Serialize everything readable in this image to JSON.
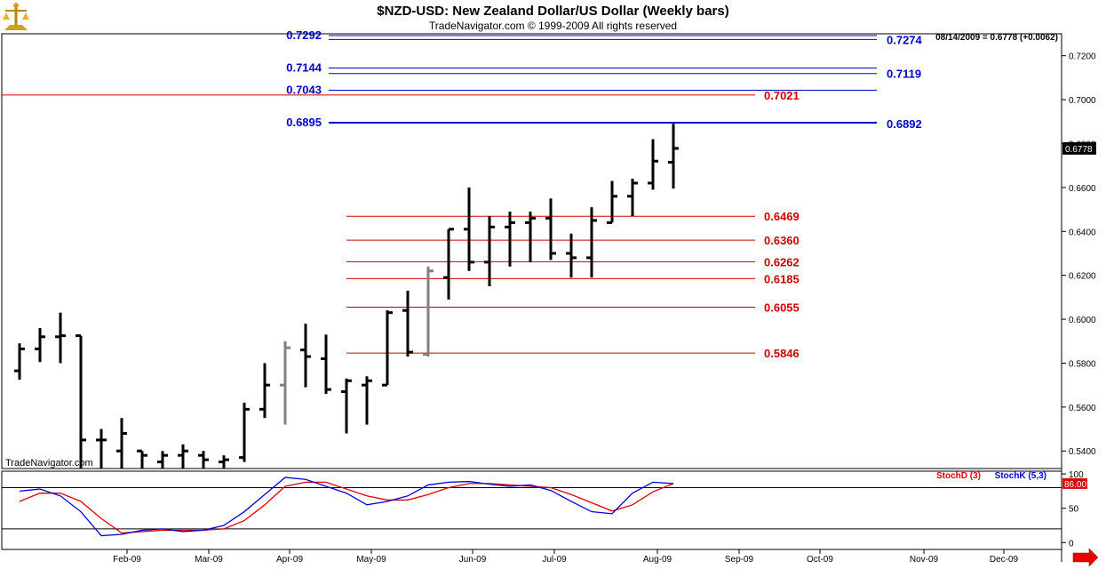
{
  "chart_data": {
    "type": "ohlc",
    "title": "$NZD-USD:  New Zealand Dollar/US Dollar  (Weekly bars)",
    "subtitle": "TradeNavigator.com © 1999-2009 All rights reserved",
    "last_bar_info": "08/14/2009 = 0.6778 (+0.0062)",
    "watermark": "TradeNavigator.com",
    "last_price_label": "0.6778",
    "price_axis": {
      "ylim": [
        0.532,
        0.73
      ],
      "ticks": [
        "0.5400",
        "0.5600",
        "0.5800",
        "0.6000",
        "0.6200",
        "0.6400",
        "0.6600",
        "0.6800",
        "0.7000",
        "0.7200"
      ]
    },
    "x_ticks": [
      "Feb-09",
      "Mar-09",
      "Apr-09",
      "May-09",
      "Jun-09",
      "Jul-09",
      "Aug-09",
      "Sep-09",
      "Oct-09",
      "Nov-09",
      "Dec-09"
    ],
    "bars": [
      {
        "o": 0.5765,
        "h": 0.589,
        "l": 0.5725,
        "c": 0.5865,
        "color": "#000000"
      },
      {
        "o": 0.5865,
        "h": 0.596,
        "l": 0.5805,
        "c": 0.592,
        "color": "#000000"
      },
      {
        "o": 0.592,
        "h": 0.603,
        "l": 0.58,
        "c": 0.5925,
        "color": "#000000"
      },
      {
        "o": 0.5925,
        "h": 0.5925,
        "l": 0.53,
        "c": 0.545,
        "color": "#000000"
      },
      {
        "o": 0.545,
        "h": 0.55,
        "l": 0.53,
        "c": 0.545,
        "color": "#000000"
      },
      {
        "o": 0.54,
        "h": 0.555,
        "l": 0.53,
        "c": 0.548,
        "color": "#000000"
      },
      {
        "o": 0.54,
        "h": 0.54,
        "l": 0.53,
        "c": 0.538,
        "color": "#000000"
      },
      {
        "o": 0.535,
        "h": 0.54,
        "l": 0.53,
        "c": 0.538,
        "color": "#000000"
      },
      {
        "o": 0.538,
        "h": 0.543,
        "l": 0.53,
        "c": 0.54,
        "color": "#000000"
      },
      {
        "o": 0.538,
        "h": 0.54,
        "l": 0.53,
        "c": 0.536,
        "color": "#000000"
      },
      {
        "o": 0.535,
        "h": 0.538,
        "l": 0.53,
        "c": 0.536,
        "color": "#000000"
      },
      {
        "o": 0.537,
        "h": 0.562,
        "l": 0.535,
        "c": 0.559,
        "color": "#000000"
      },
      {
        "o": 0.559,
        "h": 0.58,
        "l": 0.555,
        "c": 0.57,
        "color": "#000000"
      },
      {
        "o": 0.57,
        "h": 0.59,
        "l": 0.552,
        "c": 0.587,
        "color": "#808080"
      },
      {
        "o": 0.586,
        "h": 0.598,
        "l": 0.569,
        "c": 0.583,
        "color": "#000000"
      },
      {
        "o": 0.582,
        "h": 0.593,
        "l": 0.566,
        "c": 0.568,
        "color": "#000000"
      },
      {
        "o": 0.567,
        "h": 0.573,
        "l": 0.548,
        "c": 0.572,
        "color": "#000000"
      },
      {
        "o": 0.57,
        "h": 0.574,
        "l": 0.552,
        "c": 0.572,
        "color": "#000000"
      },
      {
        "o": 0.57,
        "h": 0.604,
        "l": 0.57,
        "c": 0.603,
        "color": "#000000"
      },
      {
        "o": 0.604,
        "h": 0.613,
        "l": 0.583,
        "c": 0.585,
        "color": "#000000"
      },
      {
        "o": 0.584,
        "h": 0.624,
        "l": 0.583,
        "c": 0.622,
        "color": "#808080"
      },
      {
        "o": 0.619,
        "h": 0.641,
        "l": 0.609,
        "c": 0.641,
        "color": "#000000"
      },
      {
        "o": 0.641,
        "h": 0.66,
        "l": 0.622,
        "c": 0.626,
        "color": "#000000"
      },
      {
        "o": 0.626,
        "h": 0.647,
        "l": 0.615,
        "c": 0.642,
        "color": "#000000"
      },
      {
        "o": 0.642,
        "h": 0.649,
        "l": 0.624,
        "c": 0.644,
        "color": "#000000"
      },
      {
        "o": 0.644,
        "h": 0.649,
        "l": 0.626,
        "c": 0.646,
        "color": "#000000"
      },
      {
        "o": 0.646,
        "h": 0.655,
        "l": 0.627,
        "c": 0.63,
        "color": "#000000"
      },
      {
        "o": 0.63,
        "h": 0.639,
        "l": 0.619,
        "c": 0.628,
        "color": "#000000"
      },
      {
        "o": 0.628,
        "h": 0.651,
        "l": 0.619,
        "c": 0.645,
        "color": "#000000"
      },
      {
        "o": 0.644,
        "h": 0.663,
        "l": 0.644,
        "c": 0.656,
        "color": "#000000"
      },
      {
        "o": 0.656,
        "h": 0.664,
        "l": 0.647,
        "c": 0.662,
        "color": "#000000"
      },
      {
        "o": 0.662,
        "h": 0.682,
        "l": 0.659,
        "c": 0.672,
        "color": "#000000"
      },
      {
        "o": 0.6715,
        "h": 0.689,
        "l": 0.6595,
        "c": 0.6778,
        "color": "#000000"
      }
    ],
    "levels": [
      {
        "label_left": "0.7292",
        "label_right": "0.7274",
        "y1": 0.7292,
        "y2": 0.7274,
        "color": "#0000cc",
        "span": "partial"
      },
      {
        "label_left": "0.7144",
        "label_right": "0.7119",
        "y1": 0.7144,
        "y2": 0.7119,
        "color": "#0000cc",
        "span": "partial"
      },
      {
        "label_left": "0.7043",
        "label_right": "",
        "y1": 0.7043,
        "y2": null,
        "color": "#0000cc",
        "span": "partial"
      },
      {
        "label_left": "",
        "label_right": "0.7021",
        "y1": 0.7021,
        "y2": null,
        "color": "#cc0000",
        "span": "full"
      },
      {
        "label_left": "0.6895",
        "label_right": "0.6892",
        "y1": 0.6895,
        "y2": 0.6892,
        "color": "#0000cc",
        "span": "partial",
        "thick": true
      },
      {
        "label_left": "",
        "label_right": "0.6469",
        "y1": 0.6469,
        "y2": null,
        "color": "#cc0000",
        "span": "mid"
      },
      {
        "label_left": "",
        "label_right": "0.6360",
        "y1": 0.636,
        "y2": null,
        "color": "#cc0000",
        "span": "mid"
      },
      {
        "label_left": "",
        "label_right": "0.6262",
        "y1": 0.6262,
        "y2": null,
        "color": "#cc0000",
        "span": "mid"
      },
      {
        "label_left": "",
        "label_right": "0.6185",
        "y1": 0.6185,
        "y2": null,
        "color": "#cc0000",
        "span": "mid"
      },
      {
        "label_left": "",
        "label_right": "0.6055",
        "y1": 0.6055,
        "y2": null,
        "color": "#cc0000",
        "span": "mid"
      },
      {
        "label_left": "",
        "label_right": "0.5846",
        "y1": 0.5846,
        "y2": null,
        "color": "#cc0000",
        "span": "mid"
      }
    ],
    "stoch": {
      "legend_d": "StochD (3)",
      "legend_k": "StochK (5,3)",
      "last_label": "86.00",
      "ylim": [
        -10,
        104
      ],
      "ticks": [
        "100",
        "50",
        "0"
      ],
      "ref_lines": [
        80,
        20
      ],
      "k": [
        75,
        78,
        68,
        45,
        10,
        12,
        18,
        20,
        16,
        18,
        25,
        45,
        70,
        95,
        92,
        82,
        72,
        55,
        60,
        68,
        84,
        88,
        89,
        85,
        82,
        84,
        76,
        60,
        45,
        42,
        72,
        88,
        86
      ],
      "d": [
        60,
        72,
        72,
        60,
        35,
        14,
        16,
        18,
        18,
        18,
        20,
        32,
        55,
        82,
        88,
        88,
        78,
        68,
        62,
        62,
        70,
        80,
        86,
        86,
        84,
        82,
        80,
        70,
        58,
        46,
        55,
        74,
        86
      ]
    }
  },
  "colors": {
    "level_blue": "#0000cc",
    "level_red": "#cc0000",
    "stoch_d": "#dd0000",
    "stoch_k": "#0000dd"
  },
  "icons": {
    "logo": "gold-scale-icon",
    "scroll": "red-arrow-right-icon"
  }
}
